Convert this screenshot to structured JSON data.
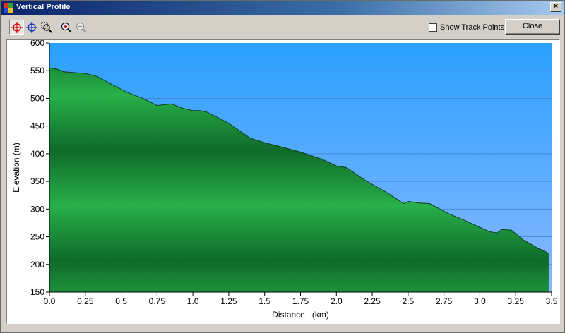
{
  "window": {
    "title": "Vertical Profile"
  },
  "toolbar": {
    "tools": [
      {
        "name": "pan-tool",
        "icon": "crosshair-red-icon",
        "active": true
      },
      {
        "name": "select-tool",
        "icon": "crosshair-blue-icon",
        "active": false
      },
      {
        "name": "zoom-region-tool",
        "icon": "zoom-area-icon",
        "active": false
      },
      {
        "name": "zoom-in-tool",
        "icon": "zoom-in-icon",
        "active": false
      },
      {
        "name": "zoom-out-tool",
        "icon": "zoom-out-icon",
        "active": false
      }
    ],
    "show_track_points_label": "Show Track Points",
    "show_track_points_checked": false,
    "close_label": "Close"
  },
  "chart_data": {
    "type": "area",
    "xlabel": "Distance   (km)",
    "ylabel": "Elevation (m)",
    "xlim": [
      0,
      3.5
    ],
    "ylim": [
      150,
      600
    ],
    "xticks": [
      "0.0",
      "0.25",
      "0.5",
      "0.75",
      "1.0",
      "1.25",
      "1.5",
      "1.75",
      "2.0",
      "2.25",
      "2.5",
      "2.75",
      "3.0",
      "3.25",
      "3.5"
    ],
    "yticks": [
      "150",
      "200",
      "250",
      "300",
      "350",
      "400",
      "450",
      "500",
      "550",
      "600"
    ],
    "grid": true,
    "colors": {
      "sky_top": "#2aa0ff",
      "sky_bottom": "#8ab8ff",
      "terrain_dark": "#0f6a2a",
      "terrain_light": "#28b04a"
    },
    "x": [
      0.0,
      0.05,
      0.1,
      0.25,
      0.33,
      0.45,
      0.55,
      0.65,
      0.75,
      0.85,
      0.93,
      1.0,
      1.05,
      1.1,
      1.25,
      1.4,
      1.5,
      1.65,
      1.75,
      1.9,
      2.0,
      2.07,
      2.2,
      2.35,
      2.47,
      2.5,
      2.58,
      2.65,
      2.78,
      2.9,
      3.0,
      3.07,
      3.12,
      3.15,
      3.22,
      3.3,
      3.4,
      3.48
    ],
    "y": [
      555,
      553,
      548,
      545,
      540,
      523,
      510,
      500,
      487,
      490,
      482,
      478,
      478,
      475,
      455,
      428,
      420,
      410,
      403,
      390,
      378,
      375,
      352,
      330,
      310,
      314,
      311,
      310,
      292,
      279,
      267,
      259,
      257,
      263,
      262,
      245,
      230,
      220
    ]
  }
}
